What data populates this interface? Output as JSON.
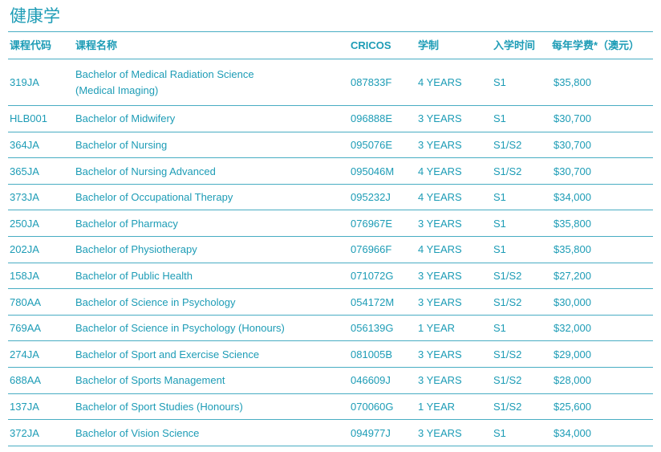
{
  "header": {
    "title": "健康学"
  },
  "table": {
    "columns": [
      "课程代码",
      "课程名称",
      "CRICOS",
      "学制",
      "入学时间",
      "每年学费*（澳元）"
    ],
    "rows": [
      [
        "319JA",
        "Bachelor of Medical Radiation Science\n(Medical Imaging)",
        "087833F",
        "4 YEARS",
        "S1",
        "$35,800"
      ],
      [
        "HLB001",
        "Bachelor of Midwifery",
        "096888E",
        "3 YEARS",
        "S1",
        "$30,700"
      ],
      [
        "364JA",
        "Bachelor of Nursing",
        "095076E",
        "3 YEARS",
        "S1/S2",
        "$30,700"
      ],
      [
        "365JA",
        "Bachelor of Nursing Advanced",
        "095046M",
        "4 YEARS",
        "S1/S2",
        "$30,700"
      ],
      [
        "373JA",
        "Bachelor of Occupational Therapy",
        "095232J",
        "4 YEARS",
        "S1",
        "$34,000"
      ],
      [
        "250JA",
        "Bachelor of Pharmacy",
        "076967E",
        "3 YEARS",
        "S1",
        "$35,800"
      ],
      [
        "202JA",
        "Bachelor of Physiotherapy",
        "076966F",
        "4 YEARS",
        "S1",
        "$35,800"
      ],
      [
        "158JA",
        "Bachelor of Public Health",
        "071072G",
        "3 YEARS",
        "S1/S2",
        "$27,200"
      ],
      [
        "780AA",
        "Bachelor of Science in Psychology",
        "054172M",
        "3 YEARS",
        "S1/S2",
        "$30,000"
      ],
      [
        "769AA",
        "Bachelor of Science in Psychology (Honours)",
        "056139G",
        "1 YEAR",
        "S1",
        "$32,000"
      ],
      [
        "274JA",
        "Bachelor of Sport and Exercise Science",
        "081005B",
        "3 YEARS",
        "S1/S2",
        "$29,000"
      ],
      [
        "688AA",
        "Bachelor of Sports Management",
        "046609J",
        "3 YEARS",
        "S1/S2",
        "$28,000"
      ],
      [
        "137JA",
        "Bachelor of Sport Studies (Honours)",
        "070060G",
        "1 YEAR",
        "S1/S2",
        "$25,600"
      ],
      [
        "372JA",
        "Bachelor of Vision Science",
        "094977J",
        "3 YEARS",
        "S1",
        "$34,000"
      ]
    ]
  }
}
